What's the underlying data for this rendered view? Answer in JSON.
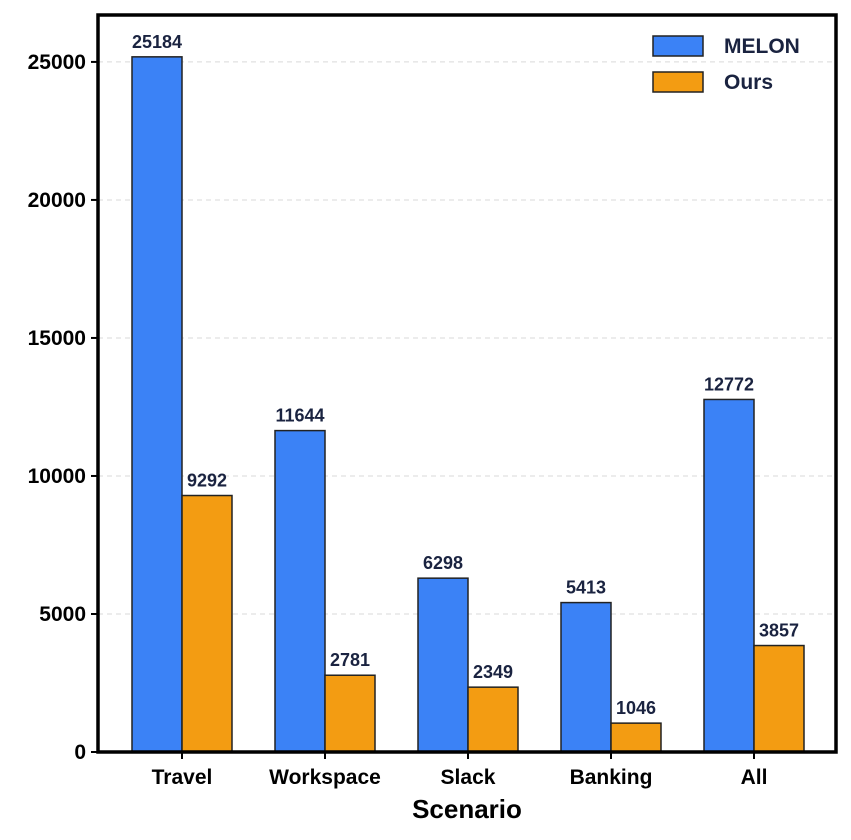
{
  "chart_data": {
    "type": "bar",
    "title": "",
    "xlabel": "Scenario",
    "ylabel": "",
    "categories": [
      "Travel",
      "Workspace",
      "Slack",
      "Banking",
      "All"
    ],
    "series": [
      {
        "name": "MELON",
        "color": "#3b82f6",
        "values": [
          25184,
          11644,
          6298,
          5413,
          12772
        ]
      },
      {
        "name": "Ours",
        "color": "#f39c12",
        "values": [
          9292,
          2781,
          2349,
          1046,
          3857
        ]
      }
    ],
    "ylim": [
      0,
      26700
    ],
    "yticks": [
      0,
      5000,
      10000,
      15000,
      20000,
      25000
    ],
    "grid": "y-dashed",
    "legend": "top-right",
    "data_labels": true
  }
}
